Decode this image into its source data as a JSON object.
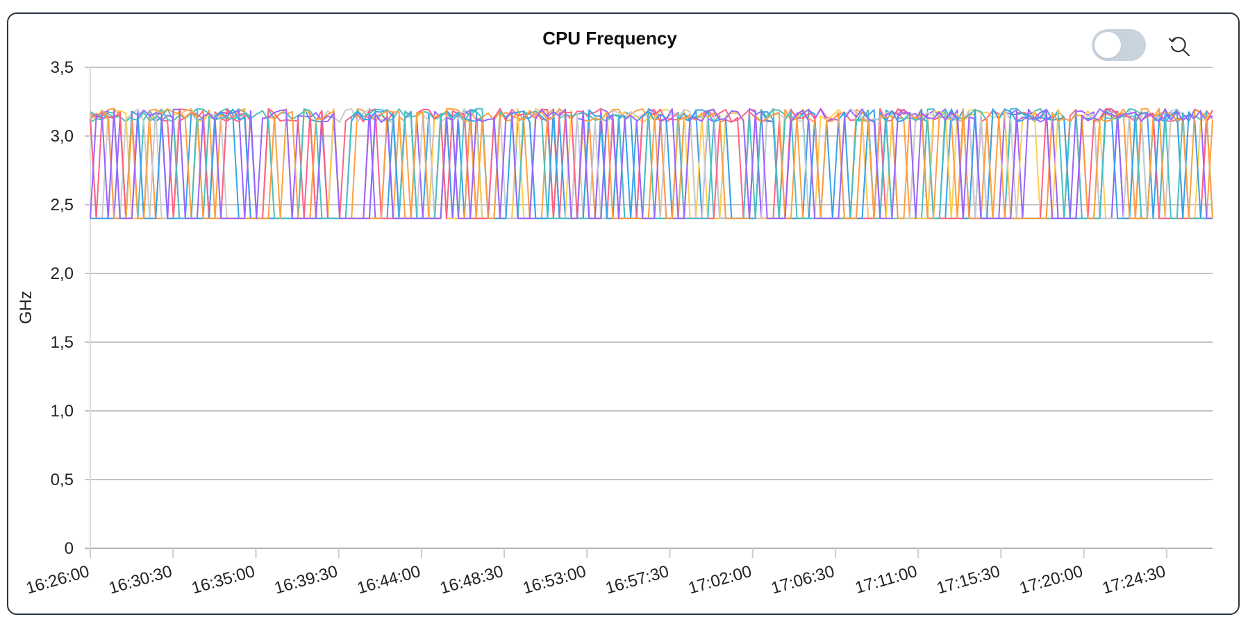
{
  "header": {
    "reset_icon": "zoom-reset-icon",
    "toggle_state": "off"
  },
  "colors": {
    "border": "#2a3342",
    "toggle_track": "#c9d3de",
    "grid": "#aaaaaa",
    "axis_text": "#222222"
  },
  "chart_data": {
    "type": "line",
    "title": "CPU Frequency",
    "xlabel": "",
    "ylabel": "GHz",
    "ylim": [
      0,
      3.5
    ],
    "yticks": [
      "0",
      "0,5",
      "1,0",
      "1,5",
      "2,0",
      "2,5",
      "3,0",
      "3,5"
    ],
    "xticks": [
      "16:26:00",
      "16:30:30",
      "16:35:00",
      "16:39:30",
      "16:44:00",
      "16:48:30",
      "16:53:00",
      "16:57:30",
      "17:02:00",
      "17:06:30",
      "17:11:00",
      "17:15:30",
      "17:20:00",
      "17:24:30"
    ],
    "x_start": "16:26:00",
    "x_end": "17:27:00",
    "grid": true,
    "legend": "none",
    "series_colors": [
      "#ff6384",
      "#36a2eb",
      "#4bc0c0",
      "#ff9f40",
      "#9966ff",
      "#ffcd56",
      "#c9cbcf",
      "#ff6384",
      "#36a2eb",
      "#4bc0c0",
      "#ff9f40",
      "#9966ff"
    ],
    "series_note": "12 cores, each alternating between ~2.4 and ~3.1–3.2 GHz",
    "low_ghz": 2.4,
    "high_ghz_range": [
      3.1,
      3.2
    ]
  }
}
